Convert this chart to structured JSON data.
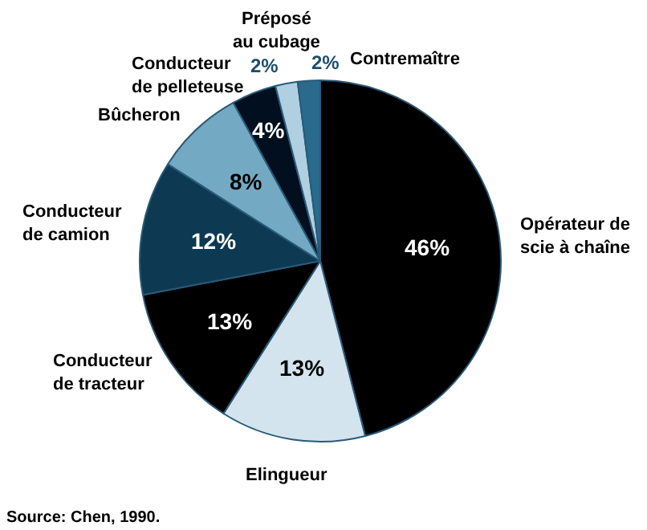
{
  "chart_data": {
    "type": "pie",
    "categories": [
      "Opérateur de\nscie à chaîne",
      "Elingueur",
      "Conducteur\nde tracteur",
      "Conducteur\nde camion",
      "Bûcheron",
      "Conducteur\nde pelleteuse",
      "Préposé\nau cubage",
      "Contremaître"
    ],
    "values": [
      46,
      13,
      13,
      12,
      8,
      4,
      2,
      2
    ],
    "colors": [
      "#000000",
      "#d4e4ee",
      "#000000",
      "#0d3a52",
      "#74a9c4",
      "#020f1e",
      "#b0d0e2",
      "#2a6a8c"
    ],
    "value_labels": [
      "46%",
      "13%",
      "13%",
      "12%",
      "8%",
      "4%",
      "2%",
      "2%"
    ],
    "annotations": [
      "Source: Chen, 1990."
    ]
  }
}
